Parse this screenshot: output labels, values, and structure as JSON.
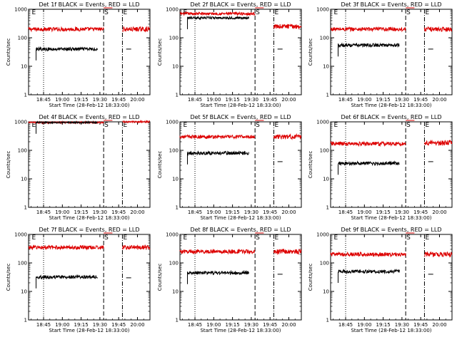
{
  "figure": {
    "colors": {
      "events": "#000000",
      "lld": "#dd0000",
      "axes": "#000000",
      "background": "#ffffff"
    }
  },
  "chart_data": [
    {
      "type": "line",
      "title": "Det 1f BLACK = Events, RED = LLD",
      "xlabel": "Start Time (28-Feb-12 18:33:00)",
      "ylabel": "Counts/sec",
      "y_scale": "log",
      "ylim": [
        1,
        1000
      ],
      "yticks": [
        "1",
        "10",
        "100",
        "1000"
      ],
      "xticks": [
        "18:45",
        "19:00",
        "19:15",
        "19:30",
        "19:45",
        "20:00"
      ],
      "x_range": [
        "18:33",
        "20:10"
      ],
      "markers": [
        {
          "label": "E",
          "x": "18:35",
          "style": "dotted"
        },
        {
          "label": "S",
          "x": "19:33",
          "style": "dashed"
        },
        {
          "label": "E",
          "x": "19:48",
          "style": "dash-dot"
        }
      ],
      "gridlines": [
        {
          "x": "18:45",
          "style": "dotted"
        }
      ],
      "series": [
        {
          "name": "LLD",
          "color": "#dd0000",
          "segments": [
            {
              "x_range": [
                "18:33",
                "19:33"
              ],
              "level": 200,
              "noise": 0.07
            },
            {
              "x_range": [
                "19:33",
                "19:40"
              ],
              "level": 1300
            },
            {
              "x_range": [
                "19:48",
                "20:10"
              ],
              "level": 200,
              "noise": 0.08
            }
          ]
        },
        {
          "name": "Events",
          "color": "#000000",
          "segments": [
            {
              "x_range": [
                "18:39",
                "19:28"
              ],
              "level": 40,
              "noise": 0.06
            },
            {
              "x_range": [
                "19:51",
                "19:55"
              ],
              "level": 40
            }
          ]
        }
      ]
    },
    {
      "type": "line",
      "title": "Det 2f BLACK = Events, RED = LLD",
      "xlabel": "Start Time (28-Feb-12 18:33:00)",
      "ylabel": "Counts/sec",
      "y_scale": "log",
      "ylim": [
        1,
        1000
      ],
      "yticks": [
        "1",
        "10",
        "100",
        "1000"
      ],
      "xticks": [
        "18:45",
        "19:00",
        "19:15",
        "19:30",
        "19:45",
        "20:00"
      ],
      "x_range": [
        "18:33",
        "20:10"
      ],
      "markers": [
        {
          "label": "E",
          "x": "18:35",
          "style": "dotted"
        },
        {
          "label": "S",
          "x": "19:33",
          "style": "dashed"
        },
        {
          "label": "E",
          "x": "19:48",
          "style": "dash-dot"
        }
      ],
      "gridlines": [
        {
          "x": "18:45",
          "style": "dotted"
        }
      ],
      "series": [
        {
          "name": "LLD",
          "color": "#dd0000",
          "segments": [
            {
              "x_range": [
                "18:33",
                "19:33"
              ],
              "level": 700,
              "noise": 0.05
            },
            {
              "x_range": [
                "19:33",
                "19:40"
              ],
              "level": 1300
            },
            {
              "x_range": [
                "19:48",
                "20:10"
              ],
              "level": 250,
              "noise": 0.08
            }
          ]
        },
        {
          "name": "Events",
          "color": "#000000",
          "segments": [
            {
              "x_range": [
                "18:39",
                "19:28"
              ],
              "level": 500,
              "noise": 0.04
            },
            {
              "x_range": [
                "19:51",
                "19:55"
              ],
              "level": 40
            }
          ]
        }
      ]
    },
    {
      "type": "line",
      "title": "Det 3f BLACK = Events, RED = LLD",
      "xlabel": "Start Time (28-Feb-12 18:33:00)",
      "ylabel": "Counts/sec",
      "y_scale": "log",
      "ylim": [
        1,
        1000
      ],
      "yticks": [
        "1",
        "10",
        "100",
        "1000"
      ],
      "xticks": [
        "18:45",
        "19:00",
        "19:15",
        "19:30",
        "19:45",
        "20:00"
      ],
      "x_range": [
        "18:33",
        "20:10"
      ],
      "markers": [
        {
          "label": "E",
          "x": "18:35",
          "style": "dotted"
        },
        {
          "label": "S",
          "x": "19:33",
          "style": "dashed"
        },
        {
          "label": "E",
          "x": "19:48",
          "style": "dash-dot"
        }
      ],
      "gridlines": [
        {
          "x": "18:45",
          "style": "dotted"
        }
      ],
      "series": [
        {
          "name": "LLD",
          "color": "#dd0000",
          "segments": [
            {
              "x_range": [
                "18:33",
                "19:33"
              ],
              "level": 200,
              "noise": 0.07
            },
            {
              "x_range": [
                "19:33",
                "19:40"
              ],
              "level": 1300
            },
            {
              "x_range": [
                "19:48",
                "20:10"
              ],
              "level": 200,
              "noise": 0.08
            }
          ]
        },
        {
          "name": "Events",
          "color": "#000000",
          "segments": [
            {
              "x_range": [
                "18:39",
                "19:28"
              ],
              "level": 55,
              "noise": 0.06
            },
            {
              "x_range": [
                "19:51",
                "19:55"
              ],
              "level": 40
            }
          ]
        }
      ]
    },
    {
      "type": "line",
      "title": "Det 4f BLACK = Events, RED = LLD",
      "xlabel": "Start Time (28-Feb-12 18:33:00)",
      "ylabel": "Counts/sec",
      "y_scale": "log",
      "ylim": [
        1,
        1000
      ],
      "yticks": [
        "1",
        "10",
        "100",
        "1000"
      ],
      "xticks": [
        "18:45",
        "19:00",
        "19:15",
        "19:30",
        "19:45",
        "20:00"
      ],
      "x_range": [
        "18:33",
        "20:10"
      ],
      "markers": [
        {
          "label": "E",
          "x": "18:35",
          "style": "dotted"
        },
        {
          "label": "S",
          "x": "19:33",
          "style": "dashed"
        },
        {
          "label": "E",
          "x": "19:48",
          "style": "dash-dot"
        }
      ],
      "gridlines": [
        {
          "x": "18:45",
          "style": "dotted"
        }
      ],
      "series": [
        {
          "name": "LLD",
          "color": "#dd0000",
          "segments": [
            {
              "x_range": [
                "18:33",
                "19:33"
              ],
              "level": 950,
              "noise": 0.03
            },
            {
              "x_range": [
                "19:33",
                "19:40"
              ],
              "level": 1300
            },
            {
              "x_range": [
                "19:48",
                "20:10"
              ],
              "level": 1000,
              "noise": 0.03
            }
          ]
        },
        {
          "name": "Events",
          "color": "#000000",
          "segments": [
            {
              "x_range": [
                "18:39",
                "19:28"
              ],
              "level": 950,
              "noise": 0.03
            }
          ]
        }
      ]
    },
    {
      "type": "line",
      "title": "Det 5f BLACK = Events, RED = LLD",
      "xlabel": "Start Time (28-Feb-12 18:33:00)",
      "ylabel": "Counts/sec",
      "y_scale": "log",
      "ylim": [
        1,
        1000
      ],
      "yticks": [
        "1",
        "10",
        "100",
        "1000"
      ],
      "xticks": [
        "18:45",
        "19:00",
        "19:15",
        "19:30",
        "19:45",
        "20:00"
      ],
      "x_range": [
        "18:33",
        "20:10"
      ],
      "markers": [
        {
          "label": "E",
          "x": "18:35",
          "style": "dotted"
        },
        {
          "label": "S",
          "x": "19:33",
          "style": "dashed"
        },
        {
          "label": "E",
          "x": "19:48",
          "style": "dash-dot"
        }
      ],
      "gridlines": [
        {
          "x": "18:45",
          "style": "dotted"
        }
      ],
      "series": [
        {
          "name": "LLD",
          "color": "#dd0000",
          "segments": [
            {
              "x_range": [
                "18:33",
                "19:33"
              ],
              "level": 300,
              "noise": 0.06
            },
            {
              "x_range": [
                "19:33",
                "19:40"
              ],
              "level": 1300
            },
            {
              "x_range": [
                "19:48",
                "20:10"
              ],
              "level": 300,
              "noise": 0.08
            }
          ]
        },
        {
          "name": "Events",
          "color": "#000000",
          "segments": [
            {
              "x_range": [
                "18:39",
                "19:28"
              ],
              "level": 80,
              "noise": 0.06
            },
            {
              "x_range": [
                "19:51",
                "19:55"
              ],
              "level": 40
            }
          ]
        }
      ]
    },
    {
      "type": "line",
      "title": "Det 6f BLACK = Events, RED = LLD",
      "xlabel": "Start Time (28-Feb-12 18:33:00)",
      "ylabel": "Counts/sec",
      "y_scale": "log",
      "ylim": [
        1,
        1000
      ],
      "yticks": [
        "1",
        "10",
        "100",
        "1000"
      ],
      "xticks": [
        "18:45",
        "19:00",
        "19:15",
        "19:30",
        "19:45",
        "20:00"
      ],
      "x_range": [
        "18:33",
        "20:10"
      ],
      "markers": [
        {
          "label": "E",
          "x": "18:35",
          "style": "dotted"
        },
        {
          "label": "S",
          "x": "19:33",
          "style": "dashed"
        },
        {
          "label": "E",
          "x": "19:48",
          "style": "dash-dot"
        }
      ],
      "gridlines": [
        {
          "x": "18:45",
          "style": "dotted"
        }
      ],
      "series": [
        {
          "name": "LLD",
          "color": "#dd0000",
          "segments": [
            {
              "x_range": [
                "18:33",
                "19:33"
              ],
              "level": 170,
              "noise": 0.07
            },
            {
              "x_range": [
                "19:33",
                "19:40"
              ],
              "level": 1300
            },
            {
              "x_range": [
                "19:48",
                "20:10"
              ],
              "level": 180,
              "noise": 0.09
            }
          ]
        },
        {
          "name": "Events",
          "color": "#000000",
          "segments": [
            {
              "x_range": [
                "18:39",
                "19:28"
              ],
              "level": 35,
              "noise": 0.06
            },
            {
              "x_range": [
                "19:51",
                "19:55"
              ],
              "level": 40
            }
          ]
        }
      ]
    },
    {
      "type": "line",
      "title": "Det 7f BLACK = Events, RED = LLD",
      "xlabel": "Start Time (28-Feb-12 18:33:00)",
      "ylabel": "Counts/sec",
      "y_scale": "log",
      "ylim": [
        1,
        1000
      ],
      "yticks": [
        "1",
        "10",
        "100",
        "1000"
      ],
      "xticks": [
        "18:45",
        "19:00",
        "19:15",
        "19:30",
        "19:45",
        "20:00"
      ],
      "x_range": [
        "18:33",
        "20:10"
      ],
      "markers": [
        {
          "label": "E",
          "x": "18:35",
          "style": "dotted"
        },
        {
          "label": "S",
          "x": "19:33",
          "style": "dashed"
        },
        {
          "label": "E",
          "x": "19:48",
          "style": "dash-dot"
        }
      ],
      "gridlines": [
        {
          "x": "18:45",
          "style": "dotted"
        }
      ],
      "series": [
        {
          "name": "LLD",
          "color": "#dd0000",
          "segments": [
            {
              "x_range": [
                "18:33",
                "19:33"
              ],
              "level": 350,
              "noise": 0.07
            },
            {
              "x_range": [
                "19:33",
                "19:40"
              ],
              "level": 1300
            },
            {
              "x_range": [
                "19:48",
                "20:10"
              ],
              "level": 350,
              "noise": 0.08
            }
          ]
        },
        {
          "name": "Events",
          "color": "#000000",
          "segments": [
            {
              "x_range": [
                "18:39",
                "19:28"
              ],
              "level": 32,
              "noise": 0.06
            },
            {
              "x_range": [
                "19:51",
                "19:55"
              ],
              "level": 30
            }
          ]
        }
      ]
    },
    {
      "type": "line",
      "title": "Det 8f BLACK = Events, RED = LLD",
      "xlabel": "Start Time (28-Feb-12 18:33:00)",
      "ylabel": "Counts/sec",
      "y_scale": "log",
      "ylim": [
        1,
        1000
      ],
      "yticks": [
        "1",
        "10",
        "100",
        "1000"
      ],
      "xticks": [
        "18:45",
        "19:00",
        "19:15",
        "19:30",
        "19:45",
        "20:00"
      ],
      "x_range": [
        "18:33",
        "20:10"
      ],
      "markers": [
        {
          "label": "E",
          "x": "18:35",
          "style": "dotted"
        },
        {
          "label": "S",
          "x": "19:33",
          "style": "dashed"
        },
        {
          "label": "E",
          "x": "19:48",
          "style": "dash-dot"
        }
      ],
      "gridlines": [
        {
          "x": "18:45",
          "style": "dotted"
        }
      ],
      "series": [
        {
          "name": "LLD",
          "color": "#dd0000",
          "segments": [
            {
              "x_range": [
                "18:33",
                "19:33"
              ],
              "level": 250,
              "noise": 0.07
            },
            {
              "x_range": [
                "19:33",
                "19:40"
              ],
              "level": 1300
            },
            {
              "x_range": [
                "19:48",
                "20:10"
              ],
              "level": 250,
              "noise": 0.08
            }
          ]
        },
        {
          "name": "Events",
          "color": "#000000",
          "segments": [
            {
              "x_range": [
                "18:39",
                "19:28"
              ],
              "level": 45,
              "noise": 0.06
            },
            {
              "x_range": [
                "19:51",
                "19:55"
              ],
              "level": 40
            }
          ]
        }
      ]
    },
    {
      "type": "line",
      "title": "Det 9f BLACK = Events, RED = LLD",
      "xlabel": "Start Time (28-Feb-12 18:33:00)",
      "ylabel": "Counts/sec",
      "y_scale": "log",
      "ylim": [
        1,
        1000
      ],
      "yticks": [
        "1",
        "10",
        "100",
        "1000"
      ],
      "xticks": [
        "18:45",
        "19:00",
        "19:15",
        "19:30",
        "19:45",
        "20:00"
      ],
      "x_range": [
        "18:33",
        "20:10"
      ],
      "markers": [
        {
          "label": "E",
          "x": "18:35",
          "style": "dotted"
        },
        {
          "label": "S",
          "x": "19:33",
          "style": "dashed"
        },
        {
          "label": "E",
          "x": "19:48",
          "style": "dash-dot"
        }
      ],
      "gridlines": [
        {
          "x": "18:45",
          "style": "dotted"
        }
      ],
      "series": [
        {
          "name": "LLD",
          "color": "#dd0000",
          "segments": [
            {
              "x_range": [
                "18:33",
                "19:33"
              ],
              "level": 200,
              "noise": 0.07
            },
            {
              "x_range": [
                "19:33",
                "19:40"
              ],
              "level": 1300
            },
            {
              "x_range": [
                "19:48",
                "20:10"
              ],
              "level": 200,
              "noise": 0.08
            }
          ]
        },
        {
          "name": "Events",
          "color": "#000000",
          "segments": [
            {
              "x_range": [
                "18:39",
                "19:28"
              ],
              "level": 50,
              "noise": 0.06
            },
            {
              "x_range": [
                "19:51",
                "19:55"
              ],
              "level": 40
            }
          ]
        }
      ]
    }
  ]
}
